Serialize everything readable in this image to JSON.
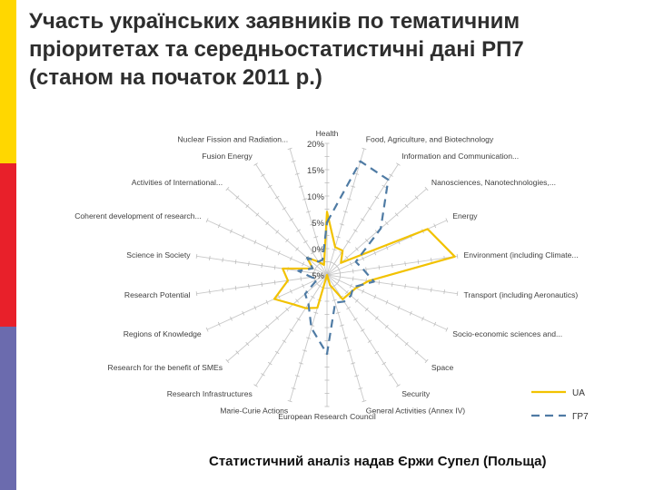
{
  "colors": {
    "stripe_top": "#FFD700",
    "stripe_mid": "#E8202A",
    "stripe_bottom": "#6B6BAE",
    "ua_series": "#F2C200",
    "fp7_series": "#4F7BA4"
  },
  "title_lines": [
    "Участь українських заявників по тематичним",
    "пріоритетах та середньостатистичні дані РП7",
    "(станом на початок 2011 р.)"
  ],
  "credit": "Статистичний аналіз надав Єржи Супел (Польща)",
  "chart_data": {
    "type": "radar",
    "categories": [
      "Health",
      "Food, Agriculture, and Biotechnology",
      "Information and Communication...",
      "Nanosciences, Nanotechnologies,...",
      "Energy",
      "Environment (including Climate...",
      "Transport (including Aeronautics)",
      "Socio-economic sciences and...",
      "Space",
      "Security",
      "General Activities (Annex IV)",
      "European Research Council",
      "Marie-Curie Actions",
      "Research Infrastructures",
      "Research for the benefit of SMEs",
      "Regions of Knowledge",
      "Research Potential",
      "Science in Society",
      "Coherent development of research...",
      "Activities of International...",
      "Fusion Energy",
      "Nuclear Fission and Radiation..."
    ],
    "radial_ticks": [
      "-5%",
      "0%",
      "5%",
      "10%",
      "15%",
      "20%"
    ],
    "rmin": -5,
    "rmax": 20,
    "series": [
      {
        "name": "UA",
        "style": "solid",
        "values": [
          7,
          0.5,
          0.5,
          -1.5,
          16,
          19.5,
          3,
          1,
          0.5,
          0.5,
          -3,
          -5,
          1.5,
          2.5,
          3.5,
          6,
          2.5,
          3.5,
          -2,
          0,
          -2,
          -3
        ]
      },
      {
        "name": "ГР7",
        "style": "dashed",
        "values": [
          5,
          17.5,
          16.5,
          8.5,
          1,
          2,
          4,
          0.5,
          1,
          1,
          0.5,
          10,
          5.5,
          1.5,
          0.5,
          -3,
          -2,
          0.5,
          -2,
          0,
          -2,
          -2
        ]
      }
    ],
    "legend_position": "bottom-right"
  }
}
